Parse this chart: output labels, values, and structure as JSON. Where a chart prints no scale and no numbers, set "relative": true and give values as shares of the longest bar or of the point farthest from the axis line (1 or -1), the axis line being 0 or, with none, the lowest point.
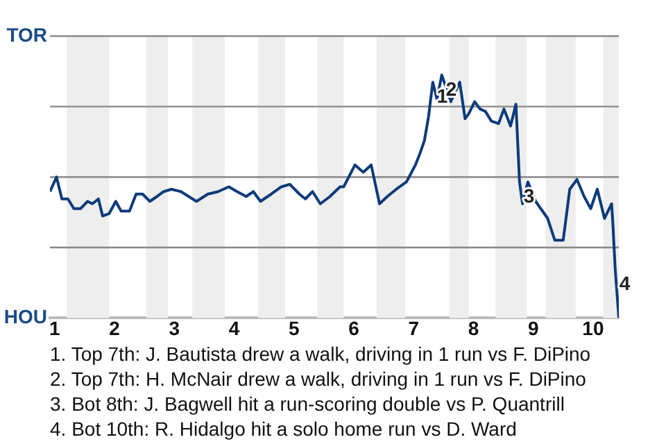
{
  "chart_data": {
    "type": "line",
    "relative": true,
    "x": [
      0.92,
      1.03,
      1.12,
      1.22,
      1.32,
      1.43,
      1.55,
      1.63,
      1.73,
      1.8,
      1.91,
      2.02,
      2.11,
      2.25,
      2.36,
      2.47,
      2.59,
      2.71,
      2.82,
      2.95,
      3.11,
      3.37,
      3.56,
      3.73,
      3.91,
      4.05,
      4.2,
      4.32,
      4.44,
      4.62,
      4.79,
      4.93,
      5.09,
      5.19,
      5.31,
      5.44,
      5.6,
      5.77,
      5.83,
      6.02,
      6.11,
      6.16,
      6.29,
      6.43,
      6.56,
      6.71,
      6.88,
      7.03,
      7.11,
      7.18,
      7.25,
      7.32,
      7.39,
      7.47,
      7.54,
      7.62,
      7.77,
      7.86,
      7.92,
      8.02,
      8.11,
      8.2,
      8.3,
      8.42,
      8.51,
      8.62,
      8.71,
      8.77,
      8.82,
      8.91,
      9.04,
      9.24,
      9.36,
      9.5,
      9.61,
      9.73,
      9.85,
      9.96,
      10.07,
      10.19,
      10.31,
      10.33,
      10.37,
      10.43
    ],
    "series": [
      {
        "color": "#0d3b7a",
        "values": [
          0.52,
          0.58,
          0.49,
          0.49,
          0.45,
          0.45,
          0.48,
          0.47,
          0.49,
          0.42,
          0.43,
          0.48,
          0.44,
          0.44,
          0.51,
          0.51,
          0.48,
          0.5,
          0.52,
          0.53,
          0.52,
          0.48,
          0.51,
          0.52,
          0.54,
          0.52,
          0.5,
          0.52,
          0.48,
          0.51,
          0.54,
          0.55,
          0.51,
          0.49,
          0.52,
          0.47,
          0.5,
          0.54,
          0.54,
          0.63,
          0.61,
          0.6,
          0.63,
          0.47,
          0.5,
          0.53,
          0.56,
          0.63,
          0.68,
          0.73,
          0.83,
          0.97,
          0.9,
          1,
          0.95,
          0.89,
          0.97,
          0.82,
          0.84,
          0.89,
          0.86,
          0.85,
          0.81,
          0.8,
          0.86,
          0.79,
          0.88,
          0.56,
          0.47,
          0.56,
          0.48,
          0.41,
          0.32,
          0.32,
          0.53,
          0.57,
          0.5,
          0.45,
          0.53,
          0.41,
          0.47,
          0.39,
          0.2,
          0
        ]
      }
    ],
    "xlim": [
      0.92,
      10.43
    ],
    "xticks": [
      1,
      2,
      3,
      4,
      5,
      6,
      7,
      8,
      9,
      10
    ],
    "grid": false,
    "legend": false,
    "marker": "none",
    "line_style": "solid",
    "ref_lines": [
      {
        "axis": "y",
        "value": 0.29,
        "color": "#888888"
      },
      {
        "axis": "y",
        "value": 0.58,
        "color": "#888888"
      },
      {
        "axis": "y",
        "value": 0.87,
        "color": "#888888"
      },
      {
        "axis": "y",
        "value": 1.16,
        "color": "#888888"
      }
    ],
    "bands": [
      {
        "axis": "x",
        "from": 1.2,
        "to": 1.91,
        "color": "#eeeeee"
      },
      {
        "axis": "x",
        "from": 2.53,
        "to": 2.89,
        "color": "#eeeeee"
      },
      {
        "axis": "x",
        "from": 3.3,
        "to": 3.84,
        "color": "#eeeeee"
      },
      {
        "axis": "x",
        "from": 4.4,
        "to": 4.85,
        "color": "#eeeeee"
      },
      {
        "axis": "x",
        "from": 5.39,
        "to": 5.83,
        "color": "#eeeeee"
      },
      {
        "axis": "x",
        "from": 6.38,
        "to": 6.86,
        "color": "#eeeeee"
      },
      {
        "axis": "x",
        "from": 7.6,
        "to": 7.92,
        "color": "#eeeeee"
      },
      {
        "axis": "x",
        "from": 8.37,
        "to": 8.89,
        "color": "#eeeeee"
      },
      {
        "axis": "x",
        "from": 9.21,
        "to": 9.71,
        "color": "#eeeeee"
      },
      {
        "axis": "x",
        "from": 10.17,
        "to": 10.43,
        "color": "#eeeeee"
      }
    ],
    "annotations": [
      "TOR",
      "HOU",
      {
        "text": "1",
        "x": 7.32,
        "y": 0.97
      },
      {
        "text": "2",
        "x": 7.47,
        "y": 1
      },
      {
        "text": "3",
        "x": 8.77,
        "y": 0.56
      },
      {
        "text": "4",
        "x": 10.37,
        "y": 0.2
      },
      "1. Top 7th: J. Bautista drew a walk, driving in 1 run vs F. DiPino",
      "2. Top 7th: H. McNair drew a walk, driving in 1 run vs F. DiPino",
      "3. Bot 8th: J. Bagwell hit a run-scoring double vs P. Quantrill",
      "4. Bot 10th: R. Hidalgo hit a solo home run vs D. Ward"
    ]
  }
}
